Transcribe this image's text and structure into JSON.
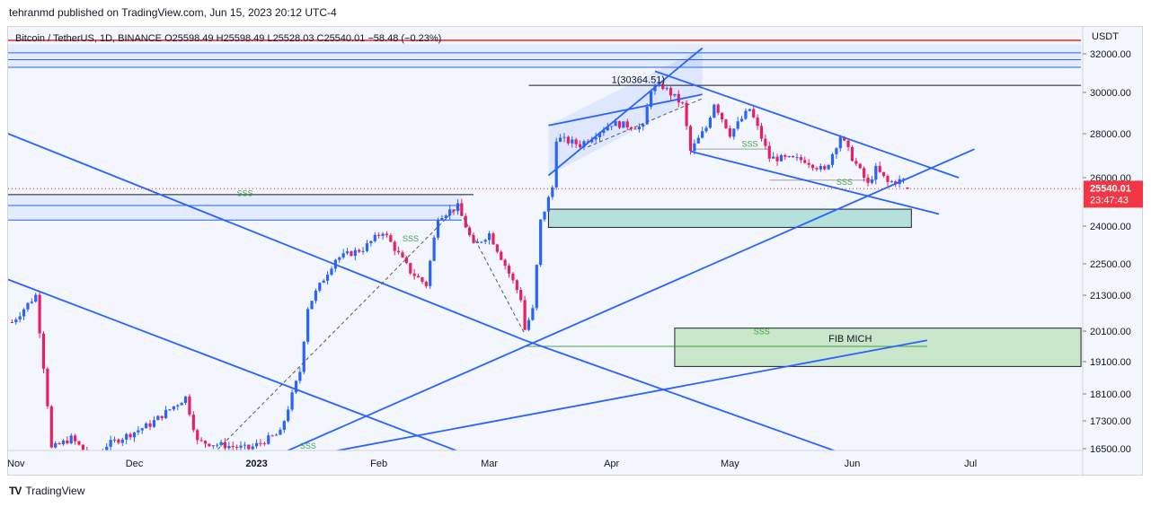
{
  "header": {
    "publish_text": "tehranmd published on TradingView.com, Jun 15, 2023 20:12 UTC-4"
  },
  "legend": {
    "text": "Bitcoin / TetherUS, 1D, BINANCE  O25598.49  H25598.49  L25528.03  C25540.01  −58.48 (−0.23%)"
  },
  "footer": {
    "logo_text": "TV",
    "brand": "TradingView"
  },
  "colors": {
    "up": "#26a69a",
    "down": "#ef5350",
    "candle_up_fill": "#2962ff",
    "trendline": "#2962ff",
    "price_label_bg": "#f23645",
    "red_line": "#e53935",
    "background": "#f3f7fd",
    "zone_teal": "#b2dfdb",
    "zone_green": "#c8e6c9",
    "annotation_green": "#43a047",
    "grey_line": "#9e9e9e"
  },
  "chart_data": {
    "type": "candlestick",
    "symbol": "Bitcoin / TetherUS",
    "timeframe": "1D",
    "exchange": "BINANCE",
    "ohlc": {
      "open": 25598.49,
      "high": 25598.49,
      "low": 25528.03,
      "close": 25540.01,
      "change": -58.48,
      "change_pct": -0.23
    },
    "currency_label": "USDT",
    "y_ticks": [
      {
        "value": 32000,
        "label": "32000.00"
      },
      {
        "value": 30000,
        "label": "30000.00"
      },
      {
        "value": 28000,
        "label": "28000.00"
      },
      {
        "value": 26000,
        "label": "26000.00"
      },
      {
        "value": 24000,
        "label": "24000.00"
      },
      {
        "value": 22500,
        "label": "22500.00"
      },
      {
        "value": 21300,
        "label": "21300.00"
      },
      {
        "value": 20100,
        "label": "20100.00"
      },
      {
        "value": 19100,
        "label": "19100.00"
      },
      {
        "value": 18100,
        "label": "18100.00"
      },
      {
        "value": 17300,
        "label": "17300.00"
      },
      {
        "value": 16500,
        "label": "16500.00"
      }
    ],
    "x_ticks": [
      {
        "date": "2022-11-01",
        "label": "Nov",
        "bold": false
      },
      {
        "date": "2022-12-01",
        "label": "Dec",
        "bold": false
      },
      {
        "date": "2023-01-01",
        "label": "2023",
        "bold": true
      },
      {
        "date": "2023-02-01",
        "label": "Feb",
        "bold": false
      },
      {
        "date": "2023-03-01",
        "label": "Mar",
        "bold": false
      },
      {
        "date": "2023-04-01",
        "label": "Apr",
        "bold": false
      },
      {
        "date": "2023-05-01",
        "label": "May",
        "bold": false
      },
      {
        "date": "2023-06-01",
        "label": "Jun",
        "bold": false
      },
      {
        "date": "2023-07-01",
        "label": "Jul",
        "bold": false
      }
    ],
    "price_label": {
      "value": 25540.01,
      "text": "25540.01",
      "countdown": "23:47:43"
    },
    "anchors": [
      {
        "date": "2022-10-31",
        "price": 20400
      },
      {
        "date": "2022-11-06",
        "price": 21300
      },
      {
        "date": "2022-11-09",
        "price": 17800
      },
      {
        "date": "2022-11-10",
        "price": 16500
      },
      {
        "date": "2022-11-15",
        "price": 16800
      },
      {
        "date": "2022-11-21",
        "price": 16150
      },
      {
        "date": "2022-11-24",
        "price": 16600
      },
      {
        "date": "2022-12-05",
        "price": 17200
      },
      {
        "date": "2022-12-14",
        "price": 18000
      },
      {
        "date": "2022-12-17",
        "price": 16700
      },
      {
        "date": "2022-12-30",
        "price": 16500
      },
      {
        "date": "2023-01-07",
        "price": 16950
      },
      {
        "date": "2023-01-12",
        "price": 18800
      },
      {
        "date": "2023-01-14",
        "price": 20900
      },
      {
        "date": "2023-01-21",
        "price": 22700
      },
      {
        "date": "2023-01-28",
        "price": 23100
      },
      {
        "date": "2023-02-02",
        "price": 23800
      },
      {
        "date": "2023-02-09",
        "price": 22200
      },
      {
        "date": "2023-02-13",
        "price": 21700
      },
      {
        "date": "2023-02-16",
        "price": 24400
      },
      {
        "date": "2023-02-21",
        "price": 24800
      },
      {
        "date": "2023-02-25",
        "price": 23200
      },
      {
        "date": "2023-03-01",
        "price": 23700
      },
      {
        "date": "2023-03-09",
        "price": 21200
      },
      {
        "date": "2023-03-10",
        "price": 20150
      },
      {
        "date": "2023-03-12",
        "price": 20800
      },
      {
        "date": "2023-03-13",
        "price": 22400
      },
      {
        "date": "2023-03-14",
        "price": 24200
      },
      {
        "date": "2023-03-17",
        "price": 25600
      },
      {
        "date": "2023-03-18",
        "price": 27800
      },
      {
        "date": "2023-03-24",
        "price": 27500
      },
      {
        "date": "2023-04-01",
        "price": 28500
      },
      {
        "date": "2023-04-09",
        "price": 28300
      },
      {
        "date": "2023-04-11",
        "price": 30200
      },
      {
        "date": "2023-04-14",
        "price": 30300
      },
      {
        "date": "2023-04-19",
        "price": 29400
      },
      {
        "date": "2023-04-21",
        "price": 27200
      },
      {
        "date": "2023-04-25",
        "price": 28300
      },
      {
        "date": "2023-04-27",
        "price": 29500
      },
      {
        "date": "2023-05-01",
        "price": 28000
      },
      {
        "date": "2023-05-06",
        "price": 29200
      },
      {
        "date": "2023-05-11",
        "price": 26900
      },
      {
        "date": "2023-05-20",
        "price": 26800
      },
      {
        "date": "2023-05-25",
        "price": 26300
      },
      {
        "date": "2023-05-29",
        "price": 27900
      },
      {
        "date": "2023-06-01",
        "price": 26900
      },
      {
        "date": "2023-06-05",
        "price": 25700
      },
      {
        "date": "2023-06-07",
        "price": 26400
      },
      {
        "date": "2023-06-10",
        "price": 25800
      },
      {
        "date": "2023-06-14",
        "price": 25900
      },
      {
        "date": "2023-06-15",
        "price": 25540
      }
    ],
    "annotations": [
      {
        "type": "text",
        "text": "1(30364.51)",
        "date": "2023-04-01",
        "price": 30500,
        "color": "#131722"
      },
      {
        "type": "text",
        "text": "SSS",
        "date": "2022-12-27",
        "price": 25250,
        "color": "#43a047"
      },
      {
        "type": "text",
        "text": "SSS",
        "date": "2023-02-07",
        "price": 23400,
        "color": "#43a047"
      },
      {
        "type": "text",
        "text": "SSS",
        "date": "2023-05-04",
        "price": 27400,
        "color": "#43a047"
      },
      {
        "type": "text",
        "text": "SSS",
        "date": "2023-05-28",
        "price": 25700,
        "color": "#43a047"
      },
      {
        "type": "text",
        "text": "SSS",
        "date": "2023-05-07",
        "price": 20000,
        "color": "#43a047"
      },
      {
        "type": "text",
        "text": "SSS",
        "date": "2023-01-12",
        "price": 16500,
        "color": "#43a047"
      },
      {
        "type": "text",
        "text": "FIB MICH",
        "date": "2023-05-26",
        "price": 19750,
        "color": "#131722"
      }
    ],
    "zones": [
      {
        "name": "demand-zone-teal",
        "from": "2023-03-16",
        "to": "2023-06-16",
        "price_top": 24700,
        "price_bottom": 23950
      },
      {
        "name": "fib-mich-zone",
        "from": "2023-04-17",
        "to": "2023-07-29",
        "price_top": 20200,
        "price_bottom": 18950
      },
      {
        "name": "resistance-band-top",
        "from": "2022-10-30",
        "to": "2023-07-29",
        "price_top": 32500,
        "price_bottom": 31300
      },
      {
        "name": "resistance-band-mid",
        "from": "2022-10-30",
        "to": "2023-02-22",
        "price_top": 25300,
        "price_bottom": 24250
      }
    ],
    "horizontal_lines": [
      {
        "price": 32700,
        "color": "#e53935",
        "from": "2022-10-30",
        "to": "2023-07-29"
      },
      {
        "price": 32050,
        "color": "#2962ff",
        "from": "2022-10-30",
        "to": "2023-07-29"
      },
      {
        "price": 31700,
        "color": "#2962ff",
        "from": "2022-10-30",
        "to": "2023-07-29"
      },
      {
        "price": 31300,
        "color": "#2962ff",
        "from": "2022-10-30",
        "to": "2023-07-29"
      },
      {
        "price": 30364.51,
        "color": "#131722",
        "from": "2023-03-11",
        "to": "2023-07-29"
      },
      {
        "price": 25300,
        "color": "#131722",
        "from": "2022-10-30",
        "to": "2023-02-25"
      },
      {
        "price": 24850,
        "color": "#2962ff",
        "from": "2022-10-30",
        "to": "2023-02-22"
      },
      {
        "price": 24250,
        "color": "#2962ff",
        "from": "2022-10-30",
        "to": "2023-02-22"
      },
      {
        "price": 19600,
        "color": "#43a047",
        "from": "2023-03-10",
        "to": "2023-06-20"
      },
      {
        "price": 27300,
        "color": "#9e9e9e",
        "from": "2023-04-22",
        "to": "2023-05-11"
      },
      {
        "price": 25900,
        "color": "#9e9e9e",
        "from": "2023-05-11",
        "to": "2023-06-07"
      }
    ],
    "trendlines": [
      {
        "from": {
          "date": "2022-10-30",
          "price": 28000
        },
        "to": {
          "date": "2023-03-10",
          "price": 19800
        }
      },
      {
        "from": {
          "date": "2023-03-10",
          "price": 19800
        },
        "to": {
          "date": "2023-05-31",
          "price": 16300
        }
      },
      {
        "from": {
          "date": "2022-10-30",
          "price": 21900
        },
        "to": {
          "date": "2023-02-24",
          "price": 16300
        }
      },
      {
        "from": {
          "date": "2023-01-08",
          "price": 16400
        },
        "to": {
          "date": "2023-07-02",
          "price": 27300
        }
      },
      {
        "from": {
          "date": "2023-01-17",
          "price": 16350
        },
        "to": {
          "date": "2023-06-20",
          "price": 19800
        }
      },
      {
        "from": {
          "date": "2023-03-16",
          "price": 26100
        },
        "to": {
          "date": "2023-04-24",
          "price": 32300
        }
      },
      {
        "from": {
          "date": "2023-03-16",
          "price": 28400
        },
        "to": {
          "date": "2023-04-24",
          "price": 29900
        }
      },
      {
        "from": {
          "date": "2023-04-12",
          "price": 31100
        },
        "to": {
          "date": "2023-06-28",
          "price": 26000
        }
      },
      {
        "from": {
          "date": "2023-04-21",
          "price": 27200
        },
        "to": {
          "date": "2023-06-23",
          "price": 24500
        }
      }
    ],
    "dashed_lines": [
      {
        "from": {
          "date": "2022-12-21",
          "price": 16350
        },
        "to": {
          "date": "2023-02-21",
          "price": 24800
        }
      },
      {
        "from": {
          "date": "2023-02-21",
          "price": 24800
        },
        "to": {
          "date": "2023-03-10",
          "price": 20000
        }
      },
      {
        "from": {
          "date": "2023-03-26",
          "price": 27400
        },
        "to": {
          "date": "2023-04-24",
          "price": 29700
        }
      }
    ],
    "channel_fill": {
      "from": "2023-03-16",
      "to": "2023-04-24",
      "low_start": 26100,
      "low_end": 29900,
      "high_start": 28400,
      "high_end": 32300
    }
  }
}
